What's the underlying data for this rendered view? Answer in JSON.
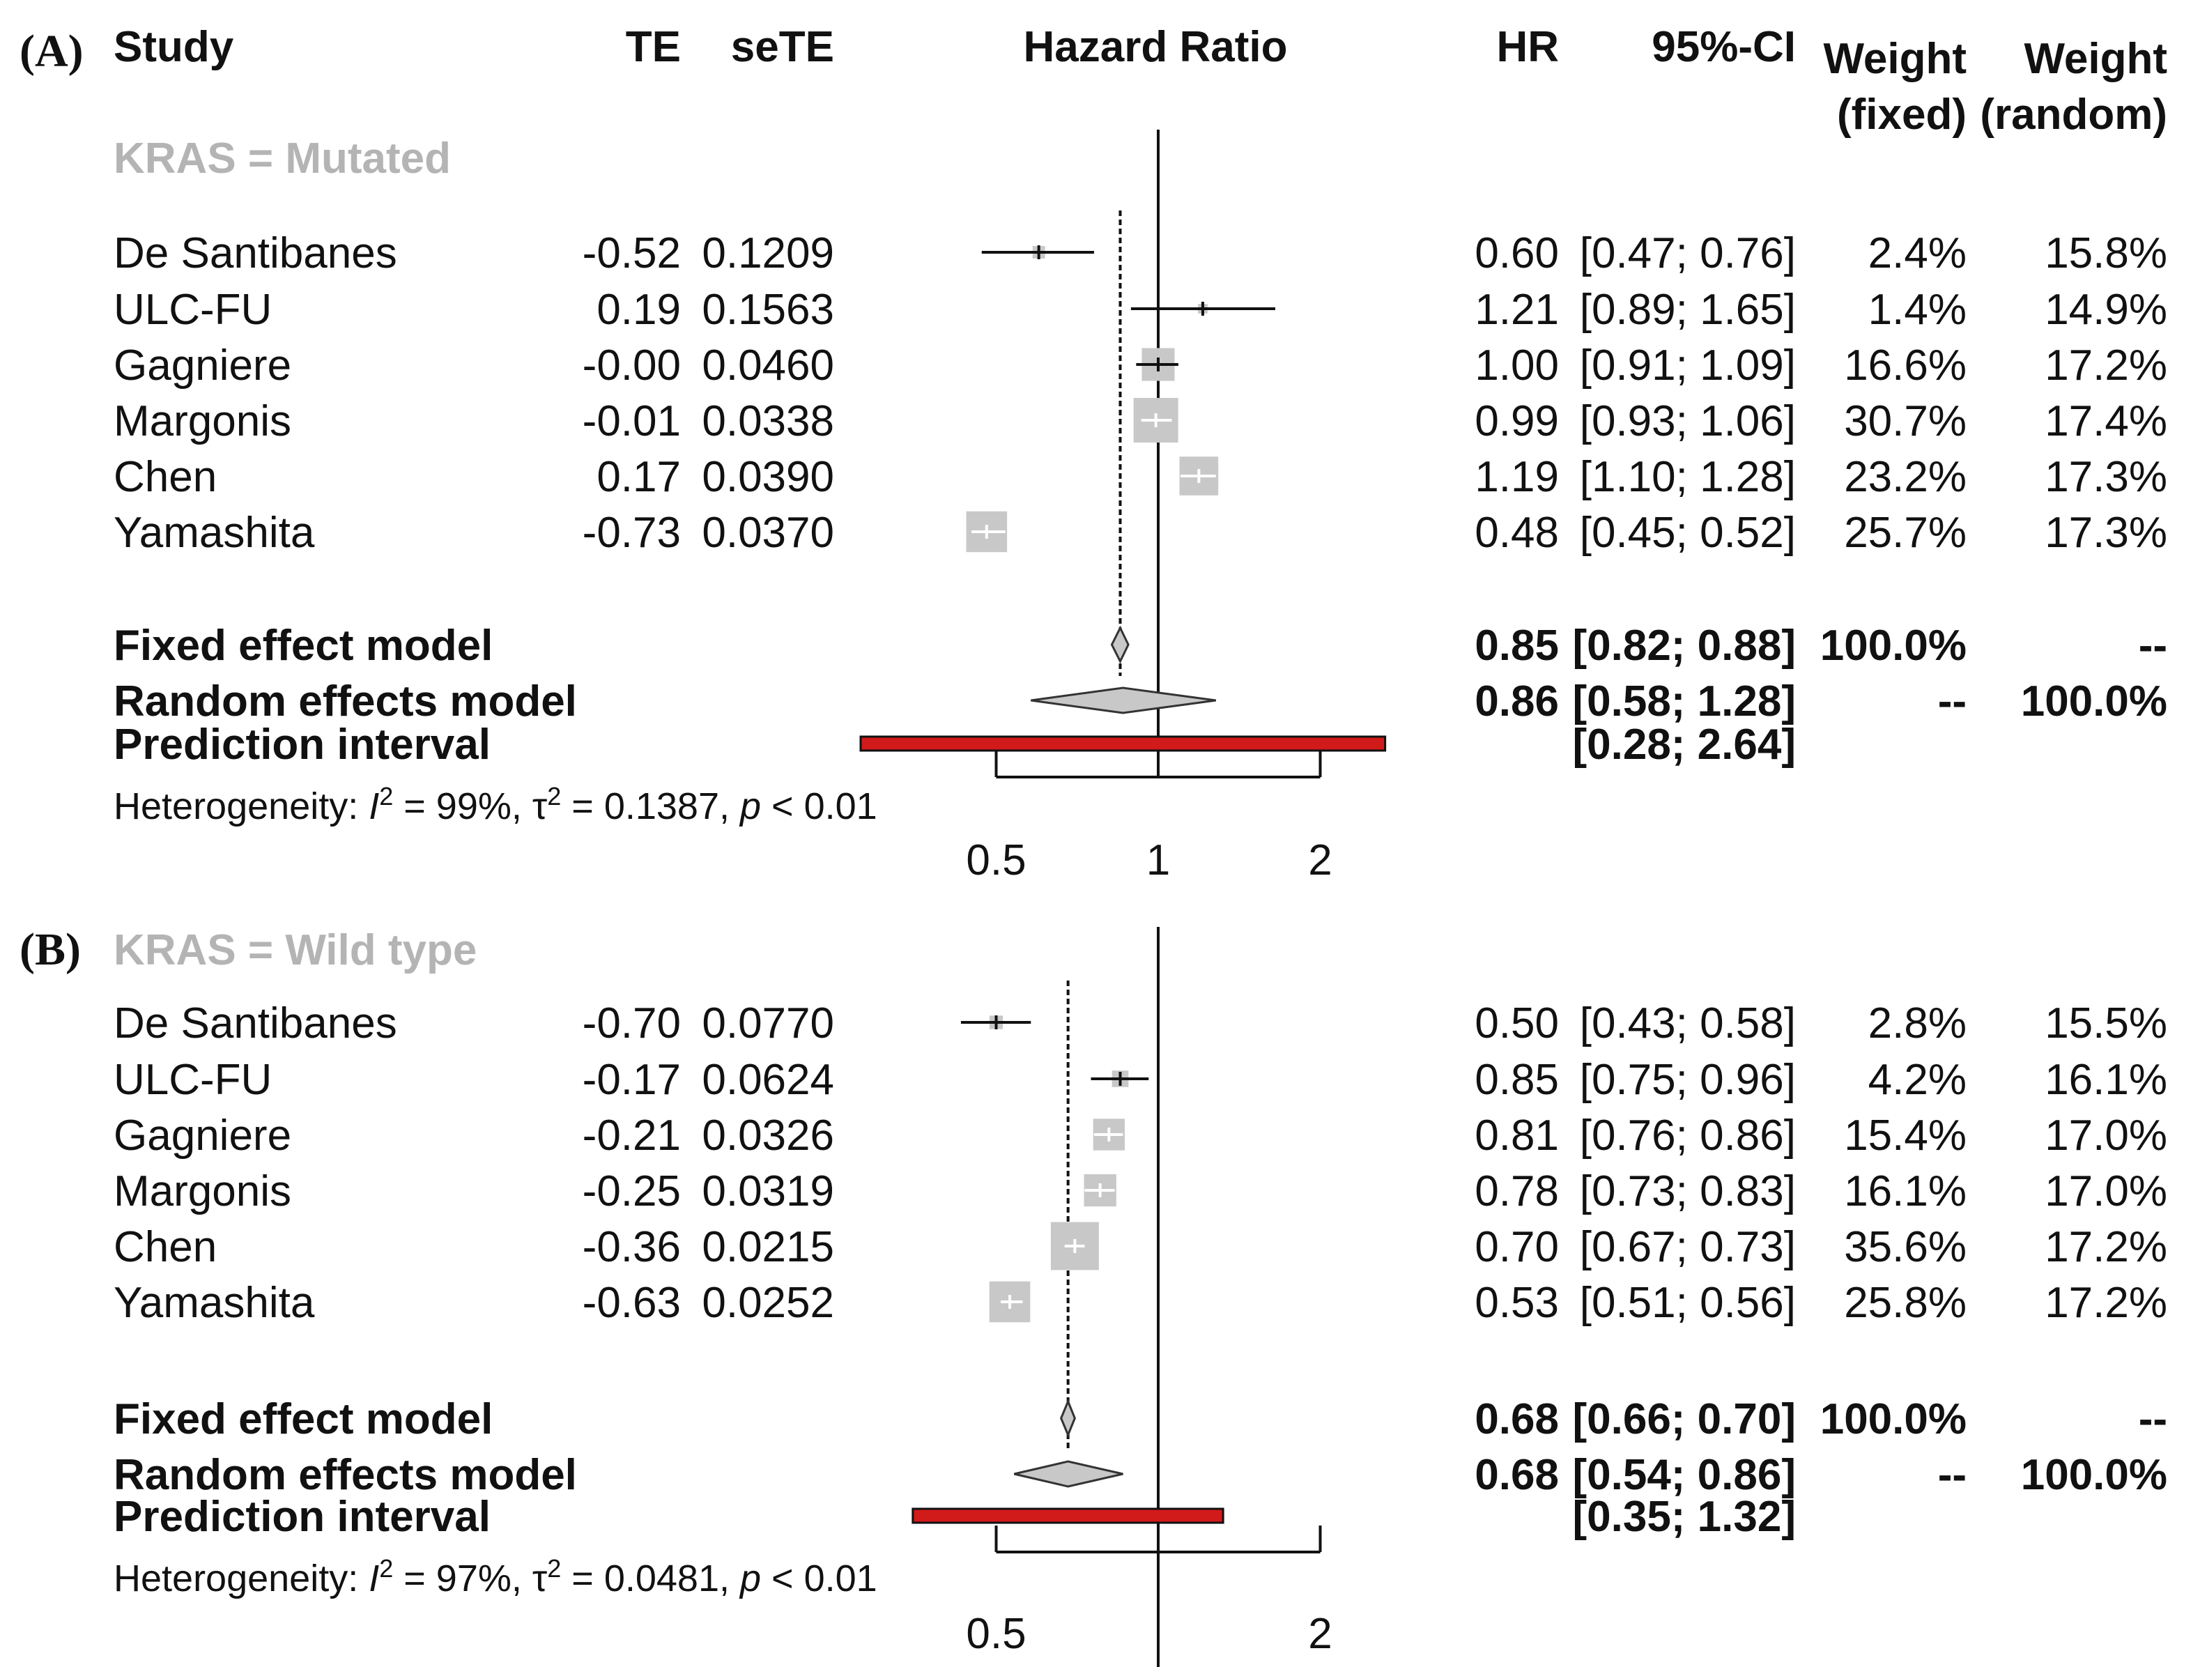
{
  "headers": {
    "study": "Study",
    "te": "TE",
    "sete": "seTE",
    "effect": "Hazard Ratio",
    "hr": "HR",
    "ci": "95%-CI",
    "w_fixed_1": "Weight",
    "w_fixed_2": "(fixed)",
    "w_random_1": "Weight",
    "w_random_2": "(random)"
  },
  "colors": {
    "prediction": "#d11a1a",
    "square": "#c8c8c8",
    "diamond": "#c8c8c8",
    "subgroup": "#b4b4b4"
  },
  "chart_data": [
    {
      "type": "forest",
      "panel_label": "(A)",
      "subgroup": "KRAS = Mutated",
      "axis": {
        "scale": "log",
        "ticks": [
          0.5,
          1,
          2
        ],
        "tick_labels": [
          "0.5",
          "1",
          "2"
        ],
        "xlim": [
          0.5,
          2
        ],
        "null_value": 1
      },
      "studies": [
        {
          "name": "De Santibanes",
          "te": "-0.52",
          "sete": "0.1209",
          "hr": 0.6,
          "lower": 0.47,
          "upper": 0.76,
          "hr_text": "0.60",
          "ci_text": "[0.47; 0.76]",
          "wf": 2.4,
          "wr": 15.8,
          "wf_text": "2.4%",
          "wr_text": "15.8%"
        },
        {
          "name": "ULC-FU",
          "te": "0.19",
          "sete": "0.1563",
          "hr": 1.21,
          "lower": 0.89,
          "upper": 1.65,
          "hr_text": "1.21",
          "ci_text": "[0.89; 1.65]",
          "wf": 1.4,
          "wr": 14.9,
          "wf_text": "1.4%",
          "wr_text": "14.9%"
        },
        {
          "name": "Gagniere",
          "te": "-0.00",
          "sete": "0.0460",
          "hr": 1.0,
          "lower": 0.91,
          "upper": 1.09,
          "hr_text": "1.00",
          "ci_text": "[0.91; 1.09]",
          "wf": 16.6,
          "wr": 17.2,
          "wf_text": "16.6%",
          "wr_text": "17.2%"
        },
        {
          "name": "Margonis",
          "te": "-0.01",
          "sete": "0.0338",
          "hr": 0.99,
          "lower": 0.93,
          "upper": 1.06,
          "hr_text": "0.99",
          "ci_text": "[0.93; 1.06]",
          "wf": 30.7,
          "wr": 17.4,
          "wf_text": "30.7%",
          "wr_text": "17.4%"
        },
        {
          "name": "Chen",
          "te": "0.17",
          "sete": "0.0390",
          "hr": 1.19,
          "lower": 1.1,
          "upper": 1.28,
          "hr_text": "1.19",
          "ci_text": "[1.10; 1.28]",
          "wf": 23.2,
          "wr": 17.3,
          "wf_text": "23.2%",
          "wr_text": "17.3%"
        },
        {
          "name": "Yamashita",
          "te": "-0.73",
          "sete": "0.0370",
          "hr": 0.48,
          "lower": 0.45,
          "upper": 0.52,
          "hr_text": "0.48",
          "ci_text": "[0.45; 0.52]",
          "wf": 25.7,
          "wr": 17.3,
          "wf_text": "25.7%",
          "wr_text": "17.3%"
        }
      ],
      "fixed": {
        "label": "Fixed effect model",
        "hr": 0.85,
        "lower": 0.82,
        "upper": 0.88,
        "hr_text": "0.85",
        "ci_text": "[0.82; 0.88]",
        "wf_text": "100.0%",
        "wr_text": "--"
      },
      "random": {
        "label": "Random effects model",
        "hr": 0.86,
        "lower": 0.58,
        "upper": 1.28,
        "hr_text": "0.86",
        "ci_text": "[0.58; 1.28]",
        "wf_text": "--",
        "wr_text": "100.0%"
      },
      "prediction": {
        "label": "Prediction interval",
        "lower": 0.28,
        "upper": 2.64,
        "ci_text": "[0.28; 2.64]"
      },
      "heterogeneity": {
        "prefix": "Heterogeneity: ",
        "i2_symbol": "I",
        "i2_sup": "2",
        "i2_value": " = 99%, ",
        "tau_symbol": "τ",
        "tau_sup": "2",
        "tau_value": " = 0.1387, ",
        "p_symbol": "p",
        "p_value": " < 0.01"
      }
    },
    {
      "type": "forest",
      "panel_label": "(B)",
      "subgroup": "KRAS = Wild type",
      "axis": {
        "scale": "log",
        "ticks": [
          0.5,
          2
        ],
        "tick_labels": [
          "0.5",
          "2"
        ],
        "xlim": [
          0.5,
          2
        ],
        "null_value": 1
      },
      "studies": [
        {
          "name": "De Santibanes",
          "te": "-0.70",
          "sete": "0.0770",
          "hr": 0.5,
          "lower": 0.43,
          "upper": 0.58,
          "hr_text": "0.50",
          "ci_text": "[0.43; 0.58]",
          "wf": 2.8,
          "wr": 15.5,
          "wf_text": "2.8%",
          "wr_text": "15.5%"
        },
        {
          "name": "ULC-FU",
          "te": "-0.17",
          "sete": "0.0624",
          "hr": 0.85,
          "lower": 0.75,
          "upper": 0.96,
          "hr_text": "0.85",
          "ci_text": "[0.75; 0.96]",
          "wf": 4.2,
          "wr": 16.1,
          "wf_text": "4.2%",
          "wr_text": "16.1%"
        },
        {
          "name": "Gagniere",
          "te": "-0.21",
          "sete": "0.0326",
          "hr": 0.81,
          "lower": 0.76,
          "upper": 0.86,
          "hr_text": "0.81",
          "ci_text": "[0.76; 0.86]",
          "wf": 15.4,
          "wr": 17.0,
          "wf_text": "15.4%",
          "wr_text": "17.0%"
        },
        {
          "name": "Margonis",
          "te": "-0.25",
          "sete": "0.0319",
          "hr": 0.78,
          "lower": 0.73,
          "upper": 0.83,
          "hr_text": "0.78",
          "ci_text": "[0.73; 0.83]",
          "wf": 16.1,
          "wr": 17.0,
          "wf_text": "16.1%",
          "wr_text": "17.0%"
        },
        {
          "name": "Chen",
          "te": "-0.36",
          "sete": "0.0215",
          "hr": 0.7,
          "lower": 0.67,
          "upper": 0.73,
          "hr_text": "0.70",
          "ci_text": "[0.67; 0.73]",
          "wf": 35.6,
          "wr": 17.2,
          "wf_text": "35.6%",
          "wr_text": "17.2%"
        },
        {
          "name": "Yamashita",
          "te": "-0.63",
          "sete": "0.0252",
          "hr": 0.53,
          "lower": 0.51,
          "upper": 0.56,
          "hr_text": "0.53",
          "ci_text": "[0.51; 0.56]",
          "wf": 25.8,
          "wr": 17.2,
          "wf_text": "25.8%",
          "wr_text": "17.2%"
        }
      ],
      "fixed": {
        "label": "Fixed effect model",
        "hr": 0.68,
        "lower": 0.66,
        "upper": 0.7,
        "hr_text": "0.68",
        "ci_text": "[0.66; 0.70]",
        "wf_text": "100.0%",
        "wr_text": "--"
      },
      "random": {
        "label": "Random effects model",
        "hr": 0.68,
        "lower": 0.54,
        "upper": 0.86,
        "hr_text": "0.68",
        "ci_text": "[0.54; 0.86]",
        "wf_text": "--",
        "wr_text": "100.0%"
      },
      "prediction": {
        "label": "Prediction interval",
        "lower": 0.35,
        "upper": 1.32,
        "ci_text": "[0.35; 1.32]"
      },
      "heterogeneity": {
        "prefix": "Heterogeneity: ",
        "i2_symbol": "I",
        "i2_sup": "2",
        "i2_value": " = 97%, ",
        "tau_symbol": "τ",
        "tau_sup": "2",
        "tau_value": " = 0.0481, ",
        "p_symbol": "p",
        "p_value": " < 0.01"
      }
    }
  ]
}
